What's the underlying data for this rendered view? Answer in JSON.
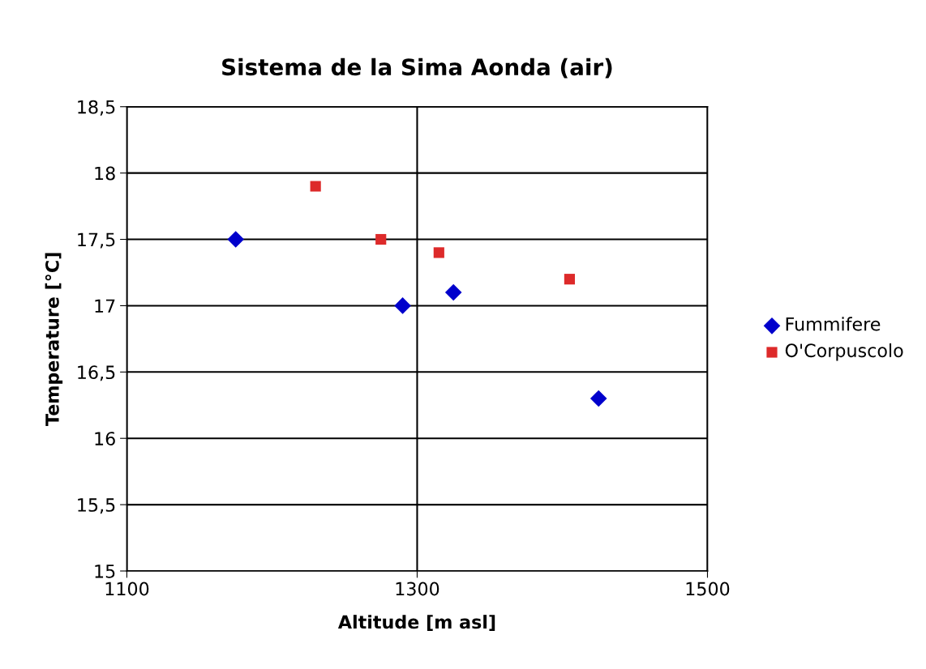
{
  "chart_data": {
    "type": "scatter",
    "title": "Sistema de la Sima Aonda (air)",
    "xlabel": "Altitude [m asl]",
    "ylabel": "Temperature [°C]",
    "series": [
      {
        "name": "Fummifere",
        "color": "#0000cc",
        "marker": "diamond",
        "x": [
          1175,
          1290,
          1325,
          1425
        ],
        "values": [
          17.5,
          17.0,
          17.1,
          16.3
        ]
      },
      {
        "name": "O'Corpuscolo",
        "color": "#dd2a2a",
        "marker": "square",
        "x": [
          1230,
          1275,
          1315,
          1405
        ],
        "values": [
          17.9,
          17.5,
          17.4,
          17.2
        ]
      }
    ],
    "xlim": [
      1100,
      1500
    ],
    "xticks": [
      1100,
      1300,
      1500
    ],
    "ylim": [
      15,
      18.5
    ],
    "yticks": [
      15,
      {
        "value": 15.5,
        "label": "15,5"
      },
      16,
      {
        "value": 16.5,
        "label": "16,5"
      },
      17,
      {
        "value": 17.5,
        "label": "17,5"
      },
      18,
      {
        "value": 18.5,
        "label": "18,5"
      }
    ],
    "grid": true,
    "legend": "right"
  }
}
